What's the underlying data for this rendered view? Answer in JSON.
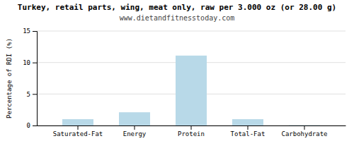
{
  "chart_data": {
    "type": "bar",
    "title": "Turkey, retail parts, wing, meat only, raw per 3.000 oz (or 28.00 g)",
    "subtitle": "www.dietandfitnesstoday.com",
    "ylabel": "Percentage of RDI (%)",
    "categories": [
      "Saturated-Fat",
      "Energy",
      "Protein",
      "Total-Fat",
      "Carbohydrate"
    ],
    "values": [
      1.0,
      2.1,
      11.1,
      1.0,
      0.05
    ],
    "color": "#b8d9e8",
    "ylim": [
      0,
      15
    ],
    "yticks": [
      0,
      5,
      10,
      15
    ],
    "grid": true
  }
}
